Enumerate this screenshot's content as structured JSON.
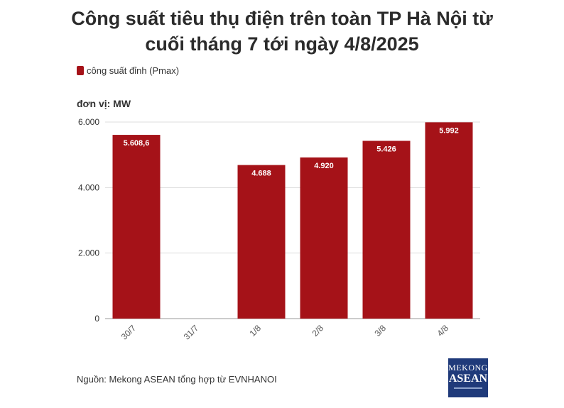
{
  "title": "Công suất tiêu thụ điện trên toàn TP Hà Nội từ cuối tháng 7 tới ngày 4/8/2025",
  "legend_label": "công suất đỉnh (Pmax)",
  "unit_label": "đơn vị: MW",
  "source": "Nguồn: Mekong ASEAN tổng hợp từ EVNHANOI",
  "logo": {
    "line1": "MEKONG",
    "line2": "ASEAN"
  },
  "colors": {
    "bar": "#a51218",
    "grid": "#dddddd",
    "axis": "#999999"
  },
  "chart_data": {
    "type": "bar",
    "categories": [
      "30/7",
      "31/7",
      "1/8",
      "2/8",
      "3/8",
      "4/8"
    ],
    "series": [
      {
        "name": "công suất đỉnh (Pmax)",
        "values": [
          5608.6,
          null,
          4688,
          4920,
          5426,
          5992
        ],
        "value_labels": [
          "5.608,6",
          "",
          "4.688",
          "4.920",
          "5.426",
          "5.992"
        ]
      }
    ],
    "ylim": [
      0,
      6000
    ],
    "yticks": [
      0,
      2000,
      4000,
      6000
    ],
    "ytick_labels": [
      "0",
      "2.000",
      "4.000",
      "6.000"
    ],
    "ylabel": "đơn vị: MW",
    "grid": true,
    "legend_position": "top-left"
  }
}
